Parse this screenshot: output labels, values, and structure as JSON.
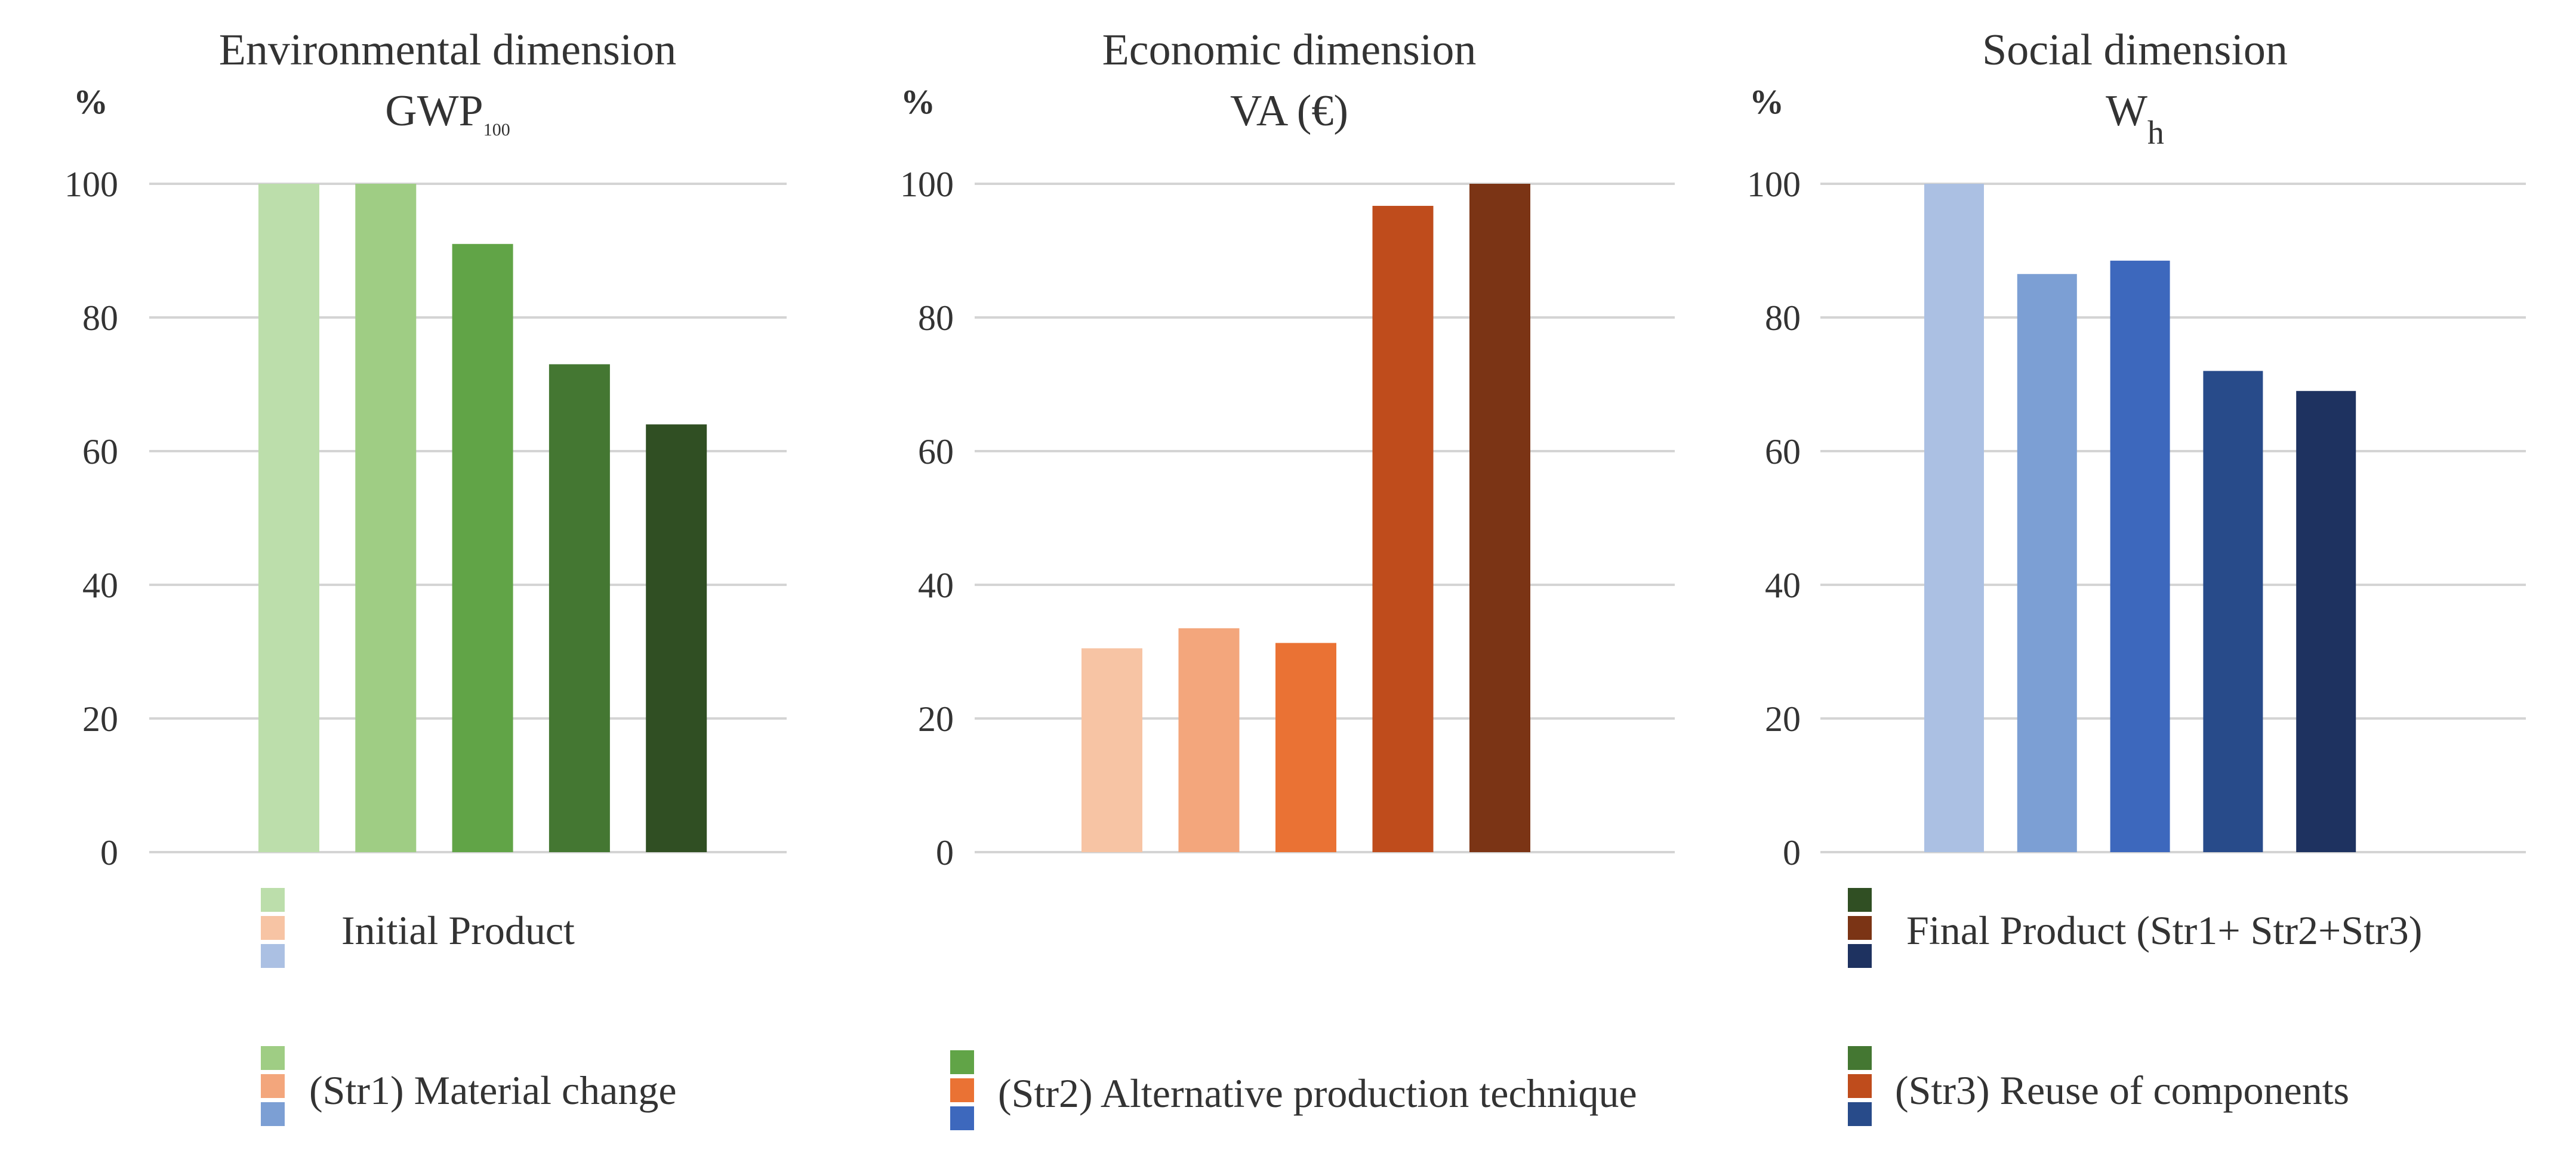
{
  "chart_data": [
    {
      "type": "bar",
      "title": "Environmental dimension",
      "subtitle": "GWP",
      "subtitle_sub": "100",
      "unit": "%",
      "categories": [
        "Initial Product",
        "(Str1) Material change",
        "(Str2) Alternative production technique",
        "(Str3) Reuse of components",
        "Final Product (Str1+ Str2+Str3)"
      ],
      "values": [
        100,
        100,
        91,
        73,
        64
      ],
      "colors": [
        "#bcdeab",
        "#9fcd84",
        "#61a447",
        "#447732",
        "#304f23"
      ],
      "ylim": [
        0,
        100
      ],
      "yticks": [
        0,
        20,
        40,
        60,
        80,
        100
      ],
      "grid": true
    },
    {
      "type": "bar",
      "title": "Economic dimension",
      "subtitle": "VA (€)",
      "subtitle_sub": "",
      "unit": "%",
      "categories": [
        "Initial Product",
        "(Str1) Material change",
        "(Str2) Alternative production technique",
        "(Str3) Reuse of components",
        "Final Product (Str1+ Str2+Str3)"
      ],
      "values": [
        30.5,
        33.5,
        31.3,
        96.7,
        100
      ],
      "colors": [
        "#f7c4a4",
        "#f3a67c",
        "#ea7234",
        "#bf4c1c",
        "#7b3415"
      ],
      "ylim": [
        0,
        100
      ],
      "yticks": [
        0,
        20,
        40,
        60,
        80,
        100
      ],
      "grid": true
    },
    {
      "type": "bar",
      "title": "Social dimension",
      "subtitle": "W",
      "subtitle_sub": "h",
      "unit": "%",
      "categories": [
        "Initial Product",
        "(Str1) Material change",
        "(Str2) Alternative production technique",
        "(Str3) Reuse of components",
        "Final Product (Str1+ Str2+Str3)"
      ],
      "values": [
        100,
        86.5,
        88.5,
        72,
        69
      ],
      "colors": [
        "#abc0e3",
        "#7c9fd4",
        "#3d68bd",
        "#284b8a",
        "#1e3260"
      ],
      "ylim": [
        0,
        100
      ],
      "yticks": [
        0,
        20,
        40,
        60,
        80,
        100
      ],
      "grid": true
    }
  ],
  "legend": [
    {
      "label": "Initial Product",
      "colors": [
        "#bcdeab",
        "#f7c4a4",
        "#abc0e3"
      ]
    },
    {
      "label": "(Str1) Material change",
      "colors": [
        "#9fcd84",
        "#f3a67c",
        "#7c9fd4"
      ]
    },
    {
      "label": "(Str2) Alternative production technique",
      "colors": [
        "#61a447",
        "#ea7234",
        "#3d68bd"
      ]
    },
    {
      "label": "(Str3) Reuse of components",
      "colors": [
        "#447732",
        "#bf4c1c",
        "#284b8a"
      ]
    },
    {
      "label": "Final Product (Str1+ Str2+Str3)",
      "colors": [
        "#304f23",
        "#7b3415",
        "#1e3260"
      ]
    }
  ]
}
